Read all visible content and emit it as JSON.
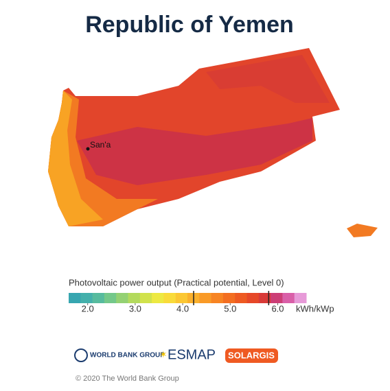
{
  "header": {
    "title": "Republic of Yemen"
  },
  "map": {
    "cities": [
      {
        "name": "San'a"
      }
    ]
  },
  "legend": {
    "title": "Photovoltaic power output (Practical potential, Level 0)",
    "lim": [
      1.6,
      6.6
    ],
    "colors": [
      "#37a6b0",
      "#44b0ab",
      "#57bb9e",
      "#74c88a",
      "#94d173",
      "#b3da5d",
      "#d1e24c",
      "#ede942",
      "#f9db3a",
      "#fbc733",
      "#fab02c",
      "#f99a27",
      "#f78423",
      "#f36e21",
      "#ee5a22",
      "#e64828",
      "#d83a38",
      "#cc3e76",
      "#d95fa8",
      "#e79ad8"
    ],
    "ticks": [
      {
        "value": 2,
        "label": "2.0"
      },
      {
        "value": 3,
        "label": "3.0"
      },
      {
        "value": 4,
        "label": "4.0"
      },
      {
        "value": 5,
        "label": "5.0"
      },
      {
        "value": 6,
        "label": "6.0"
      }
    ],
    "unit": "kWh/kWp",
    "country_range": [
      4.23,
      5.81
    ]
  },
  "logos": [
    "WORLD BANK GROUP",
    "ESMAP",
    "SOLARGIS"
  ],
  "footer": {
    "copyright": "© 2020 The World Bank Group"
  }
}
